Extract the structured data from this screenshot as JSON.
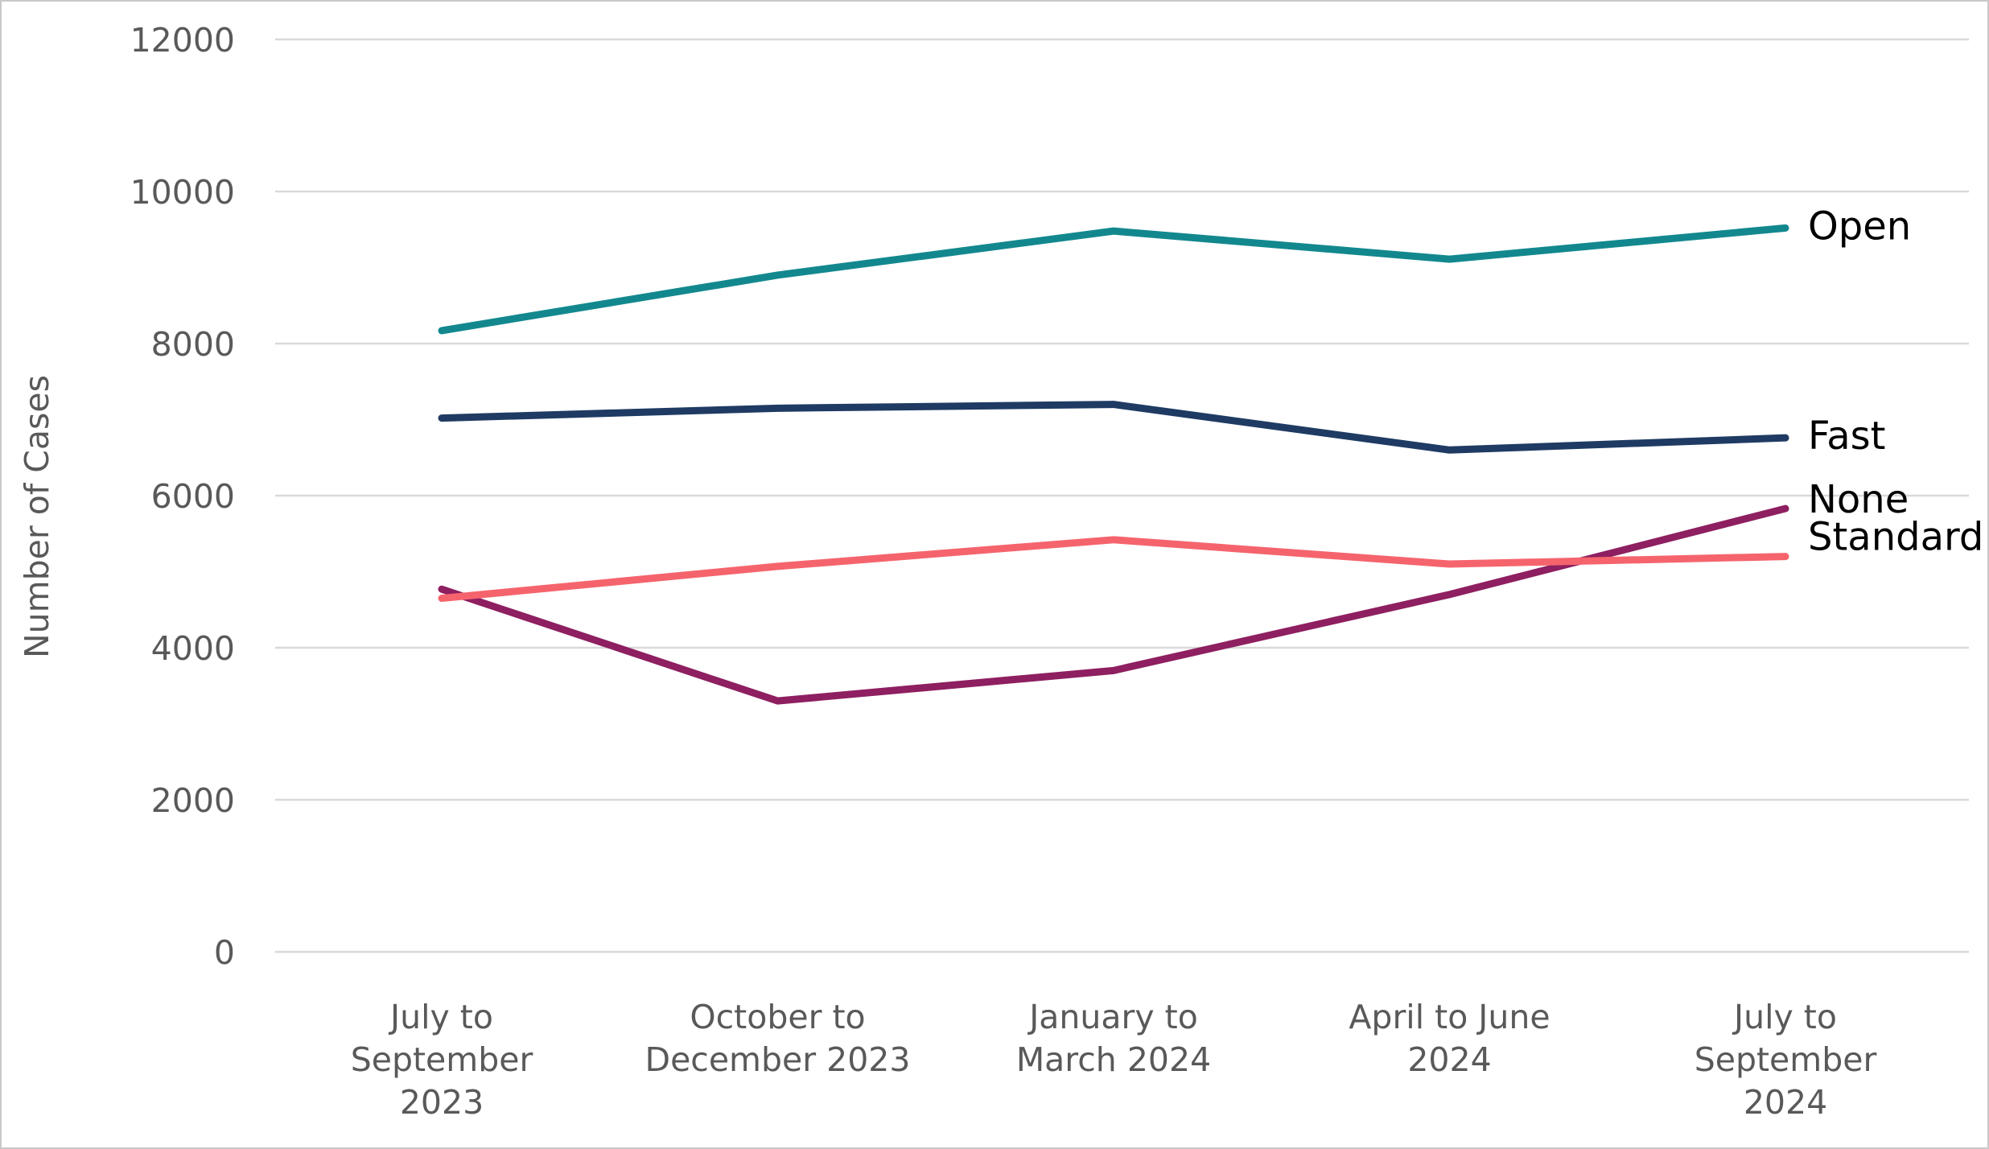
{
  "chart_data": {
    "type": "line",
    "title": "",
    "xlabel": "",
    "ylabel": "Number of Cases",
    "ylim": [
      0,
      12000
    ],
    "yticks": [
      0,
      2000,
      4000,
      6000,
      8000,
      10000,
      12000
    ],
    "grid": "horizontal",
    "legend_position": "right-end-of-line",
    "categories": [
      "July to September 2023",
      "October to December 2023",
      "January to March 2024",
      "April to June 2024",
      "July to September 2024"
    ],
    "category_label_lines": [
      [
        "July to",
        "September",
        "2023"
      ],
      [
        "October to",
        "December 2023"
      ],
      [
        "January to",
        "March 2024"
      ],
      [
        "April to June",
        "2024"
      ],
      [
        "July to",
        "September",
        "2024"
      ]
    ],
    "series": [
      {
        "name": "Open",
        "color": "#12888E",
        "values": [
          8170,
          8900,
          9480,
          9110,
          9520
        ]
      },
      {
        "name": "Fast",
        "color": "#1F3B63",
        "values": [
          7020,
          7150,
          7200,
          6600,
          6760
        ]
      },
      {
        "name": "None",
        "color": "#8E1F60",
        "values": [
          4770,
          3300,
          3700,
          4700,
          5830
        ]
      },
      {
        "name": "Standard",
        "color": "#F5646D",
        "values": [
          4650,
          5070,
          5420,
          5100,
          5200
        ]
      }
    ],
    "colors": {
      "grid": "#D9D9D9",
      "axis_text": "#595959",
      "series_label_text": "#000000",
      "background": "#FFFFFF",
      "frame_border": "#C9C9C9"
    }
  }
}
